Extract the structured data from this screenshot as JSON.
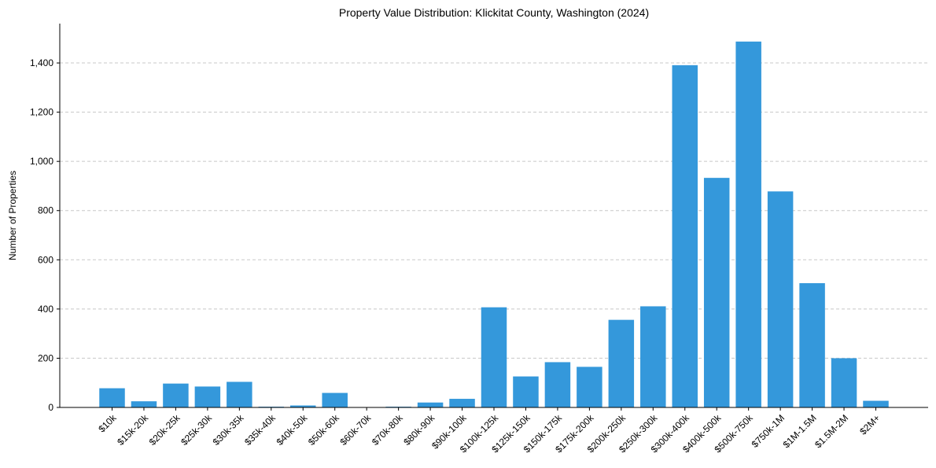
{
  "chart_data": {
    "type": "bar",
    "title": "Property Value Distribution: Klickitat County, Washington (2024)",
    "xlabel": "",
    "ylabel": "Number of Properties",
    "ylim": [
      0,
      1560
    ],
    "yticks": [
      0,
      200,
      400,
      600,
      800,
      1000,
      1200,
      1400
    ],
    "ytick_labels": [
      "0",
      "200",
      "400",
      "600",
      "800",
      "1,000",
      "1,200",
      "1,400"
    ],
    "grid": "horizontal-dashed",
    "bar_color": "#3498db",
    "categories": [
      "$10k",
      "$15k-20k",
      "$20k-25k",
      "$25k-30k",
      "$30k-35k",
      "$35k-40k",
      "$40k-50k",
      "$50k-60k",
      "$60k-70k",
      "$70k-80k",
      "$80k-90k",
      "$90k-100k",
      "$100k-125k",
      "$125k-150k",
      "$150k-175k",
      "$175k-200k",
      "$200k-250k",
      "$250k-300k",
      "$300k-400k",
      "$400k-500k",
      "$500k-750k",
      "$750k-1M",
      "$1M-1.5M",
      "$1.5M-2M",
      "$2M+"
    ],
    "values": [
      78,
      25,
      97,
      85,
      104,
      3,
      8,
      59,
      0,
      3,
      20,
      35,
      407,
      126,
      184,
      165,
      356,
      411,
      1391,
      933,
      1487,
      878,
      505,
      200,
      27
    ]
  }
}
